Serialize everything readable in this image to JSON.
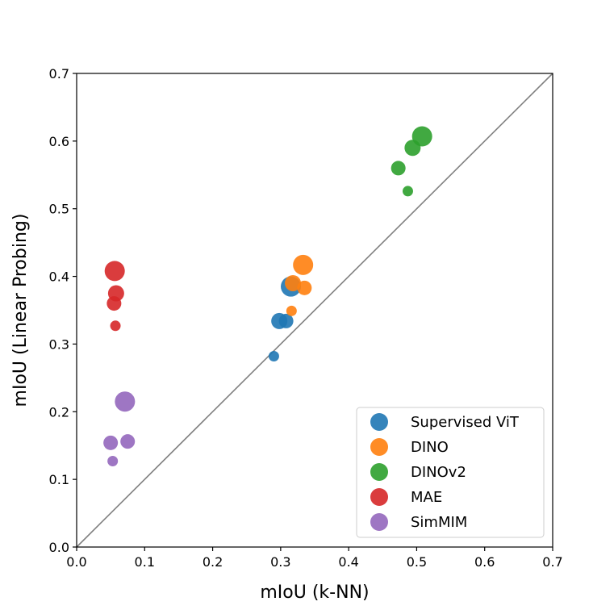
{
  "chart_data": {
    "type": "scatter",
    "xlabel": "mIoU (k-NN)",
    "ylabel": "mIoU (Linear Probing)",
    "xlim": [
      0.0,
      0.7
    ],
    "ylim": [
      0.0,
      0.7
    ],
    "xticks": [
      "0.0",
      "0.1",
      "0.2",
      "0.3",
      "0.4",
      "0.5",
      "0.6",
      "0.7"
    ],
    "yticks": [
      "0.0",
      "0.1",
      "0.2",
      "0.3",
      "0.4",
      "0.5",
      "0.6",
      "0.7"
    ],
    "diagonal": true,
    "grid": false,
    "legend_position": "lower-right",
    "series": [
      {
        "name": "Supervised ViT",
        "color": "#1f77b4",
        "points": [
          {
            "x": 0.29,
            "y": 0.282,
            "size": 1
          },
          {
            "x": 0.308,
            "y": 0.334,
            "size": 2
          },
          {
            "x": 0.298,
            "y": 0.334,
            "size": 3
          },
          {
            "x": 0.315,
            "y": 0.385,
            "size": 4
          }
        ]
      },
      {
        "name": "DINO",
        "color": "#ff7f0e",
        "points": [
          {
            "x": 0.316,
            "y": 0.349,
            "size": 1
          },
          {
            "x": 0.335,
            "y": 0.383,
            "size": 2
          },
          {
            "x": 0.318,
            "y": 0.39,
            "size": 3
          },
          {
            "x": 0.333,
            "y": 0.417,
            "size": 4
          }
        ]
      },
      {
        "name": "DINOv2",
        "color": "#2ca02c",
        "points": [
          {
            "x": 0.487,
            "y": 0.526,
            "size": 1
          },
          {
            "x": 0.473,
            "y": 0.56,
            "size": 2
          },
          {
            "x": 0.494,
            "y": 0.59,
            "size": 3
          },
          {
            "x": 0.508,
            "y": 0.607,
            "size": 4
          }
        ]
      },
      {
        "name": "MAE",
        "color": "#d62728",
        "points": [
          {
            "x": 0.057,
            "y": 0.327,
            "size": 1
          },
          {
            "x": 0.055,
            "y": 0.36,
            "size": 2
          },
          {
            "x": 0.058,
            "y": 0.375,
            "size": 3
          },
          {
            "x": 0.056,
            "y": 0.408,
            "size": 4
          }
        ]
      },
      {
        "name": "SimMIM",
        "color": "#9467bd",
        "points": [
          {
            "x": 0.053,
            "y": 0.127,
            "size": 1
          },
          {
            "x": 0.05,
            "y": 0.154,
            "size": 2
          },
          {
            "x": 0.075,
            "y": 0.156,
            "size": 2
          },
          {
            "x": 0.071,
            "y": 0.215,
            "size": 4
          }
        ]
      }
    ]
  }
}
